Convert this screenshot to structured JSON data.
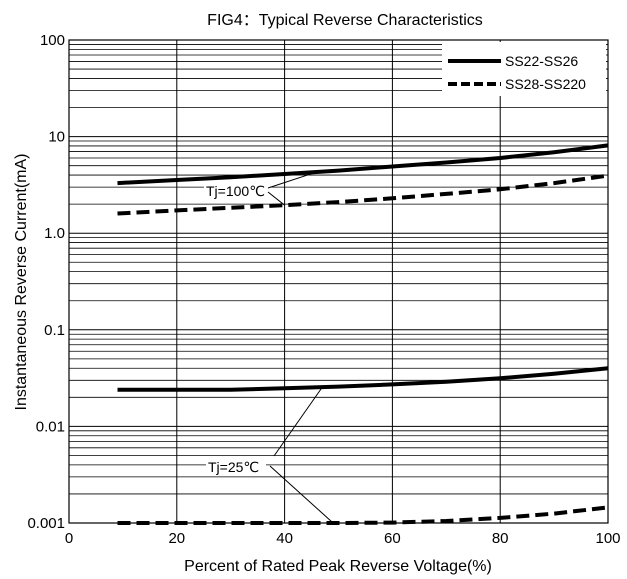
{
  "chart_data": {
    "type": "line",
    "title": "FIG4：Typical Reverse Characteristics",
    "xlabel": "Percent of Rated Peak Reverse Voltage(%)",
    "ylabel": "Instantaneous Reverse Current(mA)",
    "xlim": [
      0,
      100
    ],
    "ylim": [
      0.001,
      100
    ],
    "y_scale": "log",
    "grid": true,
    "legend_position": "top-right",
    "x_ticks": [
      "0",
      "20",
      "40",
      "60",
      "80",
      "100"
    ],
    "y_ticks": [
      "0.001",
      "0.01",
      "0.1",
      "1.0",
      "10",
      "100"
    ],
    "legend": [
      {
        "label": "SS22-SS26",
        "style": "solid"
      },
      {
        "label": "SS28-SS220",
        "style": "dashed"
      }
    ],
    "annotations": [
      "Tj=100℃",
      "Tj=25℃"
    ],
    "series": [
      {
        "legend_label": "SS22-SS26",
        "annotation": "Tj=100℃",
        "style": "solid",
        "x": [
          9,
          20,
          30,
          40,
          50,
          60,
          70,
          80,
          90,
          100
        ],
        "y": [
          3.3,
          3.55,
          3.8,
          4.1,
          4.45,
          4.9,
          5.4,
          6.0,
          6.9,
          8.1
        ]
      },
      {
        "legend_label": "SS28-SS220",
        "annotation": "Tj=100℃",
        "style": "dashed",
        "x": [
          9,
          20,
          30,
          40,
          50,
          60,
          70,
          80,
          90,
          100
        ],
        "y": [
          1.6,
          1.72,
          1.83,
          1.95,
          2.1,
          2.3,
          2.55,
          2.85,
          3.3,
          3.95
        ]
      },
      {
        "legend_label": "SS22-SS26",
        "annotation": "Tj=25℃",
        "style": "solid",
        "x": [
          9,
          20,
          30,
          40,
          50,
          60,
          70,
          80,
          90,
          100
        ],
        "y": [
          0.024,
          0.024,
          0.024,
          0.0248,
          0.0258,
          0.0272,
          0.029,
          0.0315,
          0.035,
          0.04
        ]
      },
      {
        "legend_label": "SS28-SS220",
        "annotation": "Tj=25℃",
        "style": "dashed",
        "x": [
          9,
          20,
          30,
          40,
          50,
          60,
          70,
          80,
          90,
          100
        ],
        "y": [
          0.001,
          0.001,
          0.001,
          0.001,
          0.001,
          0.00101,
          0.00105,
          0.00113,
          0.00125,
          0.00145
        ]
      }
    ]
  }
}
